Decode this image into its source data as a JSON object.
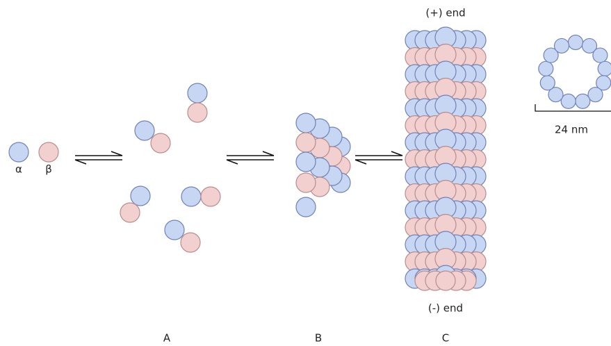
{
  "subunits": {
    "alpha": "α",
    "beta": "β"
  },
  "microtubule": {
    "plus_end": "(+) end",
    "minus_end": "(-) end",
    "diameter": "24 nm"
  },
  "stages": {
    "a": "A",
    "b": "B",
    "c": "C"
  }
}
